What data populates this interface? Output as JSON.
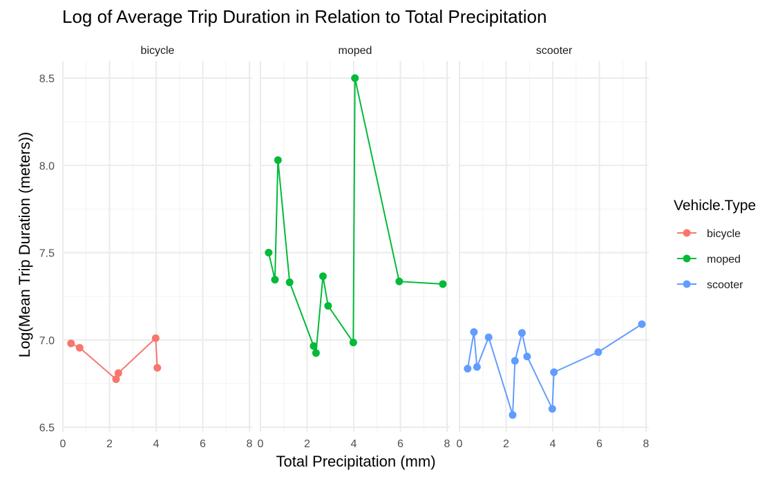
{
  "chart_data": {
    "type": "line",
    "title": "Log of Average Trip Duration in Relation to Total Precipitation",
    "xlabel": "Total Precipitation (mm)",
    "ylabel": "Log(Mean Trip Duration (meters))",
    "xlim": [
      0,
      8.1
    ],
    "ylim": [
      6.5,
      8.5
    ],
    "x_ticks": [
      0,
      2,
      4,
      6,
      8
    ],
    "y_ticks": [
      6.5,
      7.0,
      7.5,
      8.0,
      8.5
    ],
    "grid": true,
    "legend": {
      "title": "Vehicle.Type",
      "placement": "right",
      "entries": [
        "bicycle",
        "moped",
        "scooter"
      ]
    },
    "facets": [
      {
        "label": "bicycle",
        "color": "#F8766D",
        "points": [
          {
            "x": 0.35,
            "y": 6.98
          },
          {
            "x": 0.72,
            "y": 6.955
          },
          {
            "x": 2.28,
            "y": 6.775
          },
          {
            "x": 2.38,
            "y": 6.81
          },
          {
            "x": 3.98,
            "y": 7.01
          },
          {
            "x": 4.05,
            "y": 6.84
          }
        ]
      },
      {
        "label": "moped",
        "color": "#00BA38",
        "points": [
          {
            "x": 0.35,
            "y": 7.5
          },
          {
            "x": 0.62,
            "y": 7.345
          },
          {
            "x": 0.75,
            "y": 8.03
          },
          {
            "x": 1.25,
            "y": 7.33
          },
          {
            "x": 2.28,
            "y": 6.965
          },
          {
            "x": 2.38,
            "y": 6.925
          },
          {
            "x": 2.68,
            "y": 7.365
          },
          {
            "x": 2.9,
            "y": 7.195
          },
          {
            "x": 3.98,
            "y": 6.985
          },
          {
            "x": 4.05,
            "y": 8.5
          },
          {
            "x": 5.95,
            "y": 7.335
          },
          {
            "x": 7.82,
            "y": 7.32
          }
        ]
      },
      {
        "label": "scooter",
        "color": "#619CFF",
        "points": [
          {
            "x": 0.35,
            "y": 6.835
          },
          {
            "x": 0.62,
            "y": 7.045
          },
          {
            "x": 0.75,
            "y": 6.845
          },
          {
            "x": 1.25,
            "y": 7.015
          },
          {
            "x": 2.28,
            "y": 6.57
          },
          {
            "x": 2.38,
            "y": 6.88
          },
          {
            "x": 2.68,
            "y": 7.04
          },
          {
            "x": 2.9,
            "y": 6.905
          },
          {
            "x": 3.98,
            "y": 6.605
          },
          {
            "x": 4.05,
            "y": 6.815
          },
          {
            "x": 5.95,
            "y": 6.93
          },
          {
            "x": 7.82,
            "y": 7.09
          }
        ]
      }
    ]
  }
}
